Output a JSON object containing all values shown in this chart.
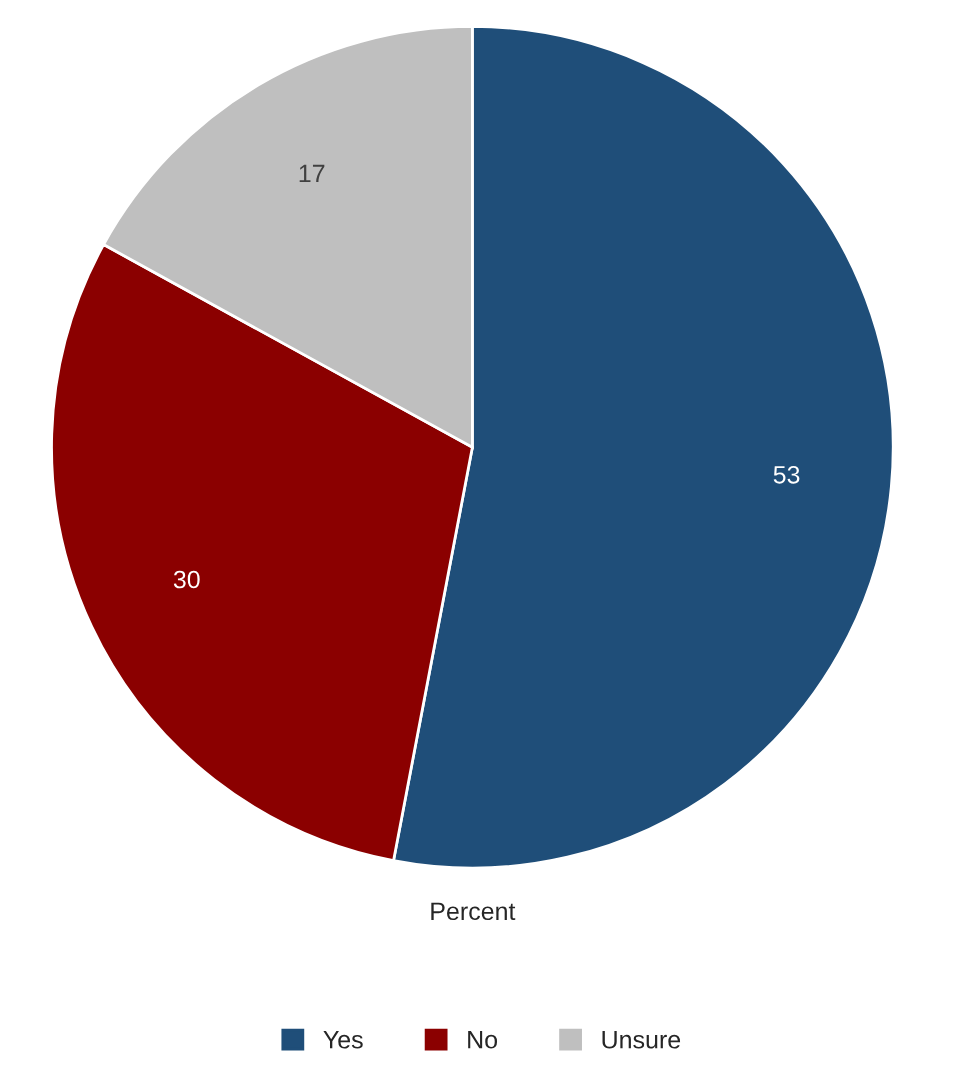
{
  "chart_data": {
    "type": "pie",
    "xlabel": "Percent",
    "categories": [
      "Yes",
      "No",
      "Unsure"
    ],
    "values": [
      53,
      30,
      17
    ],
    "colors": [
      "#1f4e79",
      "#8b0000",
      "#bfbfbf"
    ],
    "data_labels": true,
    "legend": "bottom"
  }
}
